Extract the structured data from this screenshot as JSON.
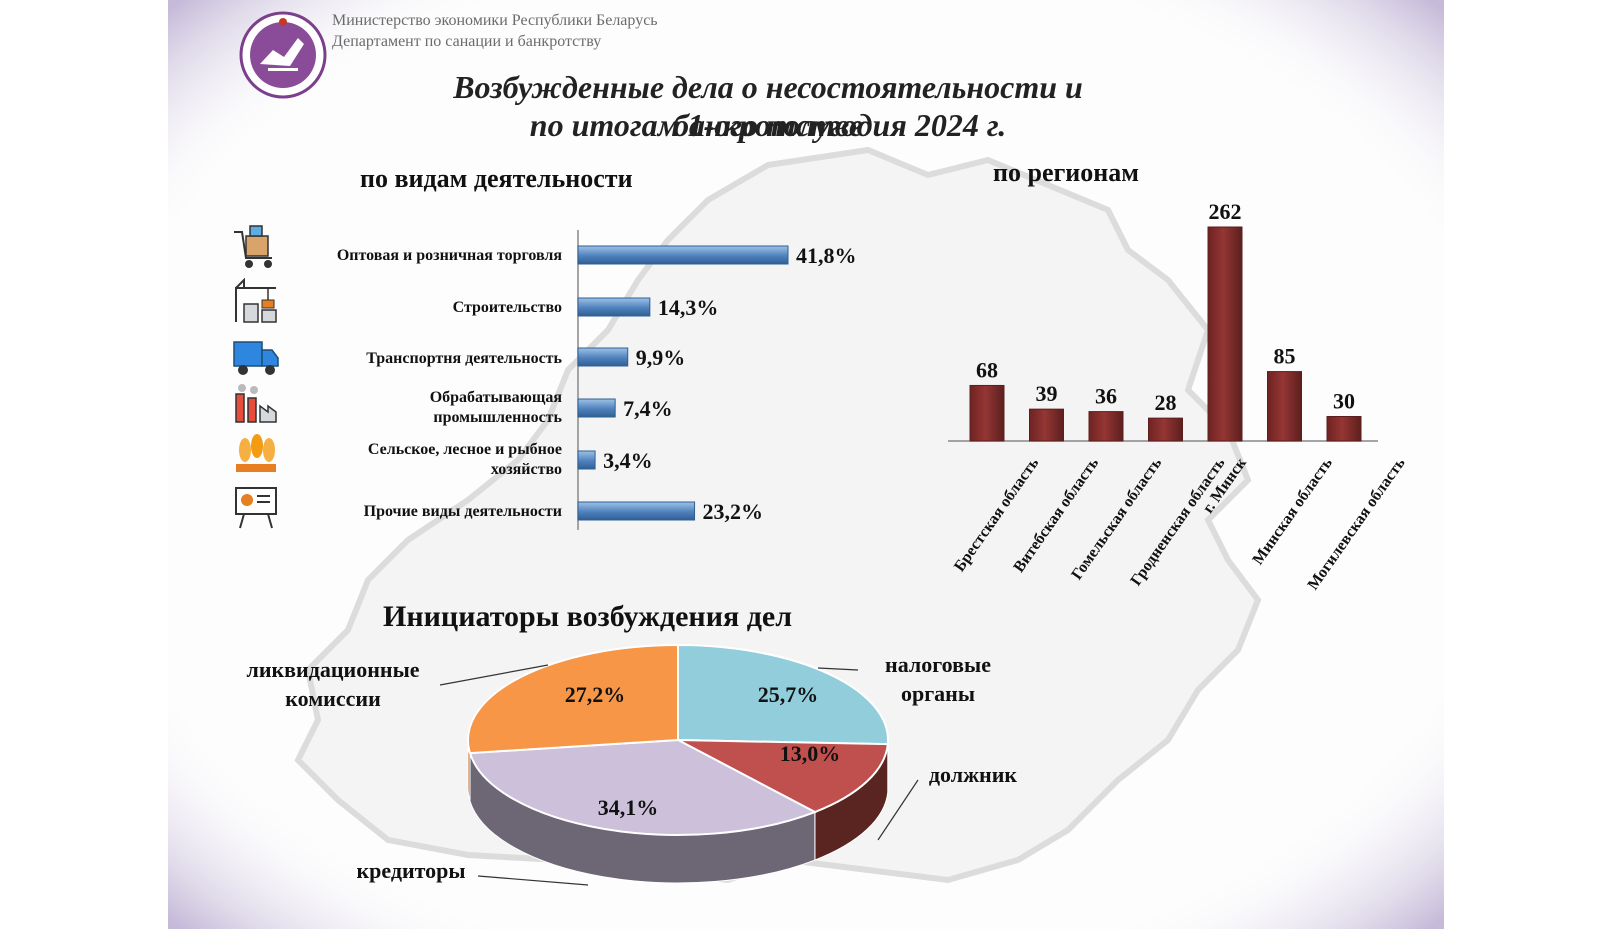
{
  "header": {
    "org_line1": "Министерство экономики Республики Беларусь",
    "org_line2": "Департамент по санации и банкротству",
    "title_line1": "Возбужденные дела о несостоятельности и банкротстве",
    "title_line2": "по итогам 1-ого полугодия 2024 г."
  },
  "colors": {
    "activity_bar": "#4f81bd",
    "region_bar": "#943634",
    "pie_tax": "#92cddc",
    "pie_debtor": "#c0504d",
    "pie_creditors": "#ccc0da",
    "pie_liquidation": "#f79646"
  },
  "chart_data": [
    {
      "type": "bar",
      "orientation": "horizontal",
      "title": "по видам деятельности",
      "categories": [
        "Оптовая и розничная торговля",
        "Строительство",
        "Транспортня деятельность",
        "Обрабатывающая промышленность",
        "Сельское, лесное и рыбное хозяйство",
        "Прочие виды деятельности"
      ],
      "values": [
        41.8,
        14.3,
        9.9,
        7.4,
        3.4,
        23.2
      ],
      "value_labels": [
        "41,8%",
        "14,3%",
        "9,9%",
        "7,4%",
        "3,4%",
        "23,2%"
      ],
      "icons": [
        "shopping-cart-icon",
        "construction-crane-icon",
        "truck-icon",
        "factory-icon",
        "wheat-icon",
        "presentation-board-icon"
      ],
      "xlim": [
        0,
        50
      ]
    },
    {
      "type": "bar",
      "orientation": "vertical",
      "title": "по регионам",
      "categories": [
        "Брестская область",
        "Витебская область",
        "Гомельская область",
        "Гродненская область",
        "г. Минск",
        "Минская область",
        "Могилевская область"
      ],
      "values": [
        68,
        39,
        36,
        28,
        262,
        85,
        30
      ],
      "ylim": [
        0,
        262
      ]
    },
    {
      "type": "pie",
      "title": "Инициаторы возбуждения дел",
      "slices": [
        {
          "name": "налоговые органы",
          "value": 25.7,
          "label": "25,7%"
        },
        {
          "name": "должник",
          "value": 13.0,
          "label": "13,0%"
        },
        {
          "name": "кредиторы",
          "value": 34.1,
          "label": "34,1%"
        },
        {
          "name": "ликвидационные комиссии",
          "value": 27.2,
          "label": "27,2%"
        }
      ]
    }
  ],
  "pie_labels": {
    "tax_line1": "налоговые",
    "tax_line2": "органы",
    "debtor": "должник",
    "creditors": "кредиторы",
    "liq_line1": "ликвидационные",
    "liq_line2": "комиссии"
  }
}
